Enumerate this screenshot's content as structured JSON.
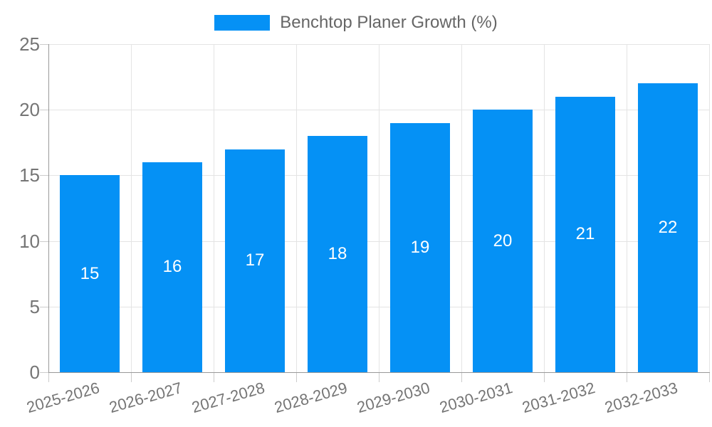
{
  "legend": {
    "label": "Benchtop Planer Growth (%)"
  },
  "colors": {
    "bar": "#0591F5",
    "grid": "#E4E4E4",
    "axis": "#999999",
    "tick": "#CCCCCC",
    "axis_text": "#757575",
    "legend_text": "#666666",
    "bar_label_text": "#FFFFFF",
    "background": "#FFFFFF"
  },
  "chart_data": {
    "type": "bar",
    "categories": [
      "2025-2026",
      "2026-2027",
      "2027-2028",
      "2028-2029",
      "2029-2030",
      "2030-2031",
      "2031-2032",
      "2032-2033"
    ],
    "values": [
      15,
      16,
      17,
      18,
      19,
      20,
      21,
      22
    ],
    "series_name": "Benchtop Planer Growth (%)",
    "title": "",
    "xlabel": "",
    "ylabel": "",
    "ylim": [
      0,
      25
    ],
    "yticks": [
      0,
      5,
      10,
      15,
      20,
      25
    ],
    "grid": true,
    "legend_position": "top-center",
    "value_labels": "inside-center",
    "x_tick_rotation_deg": -16
  }
}
